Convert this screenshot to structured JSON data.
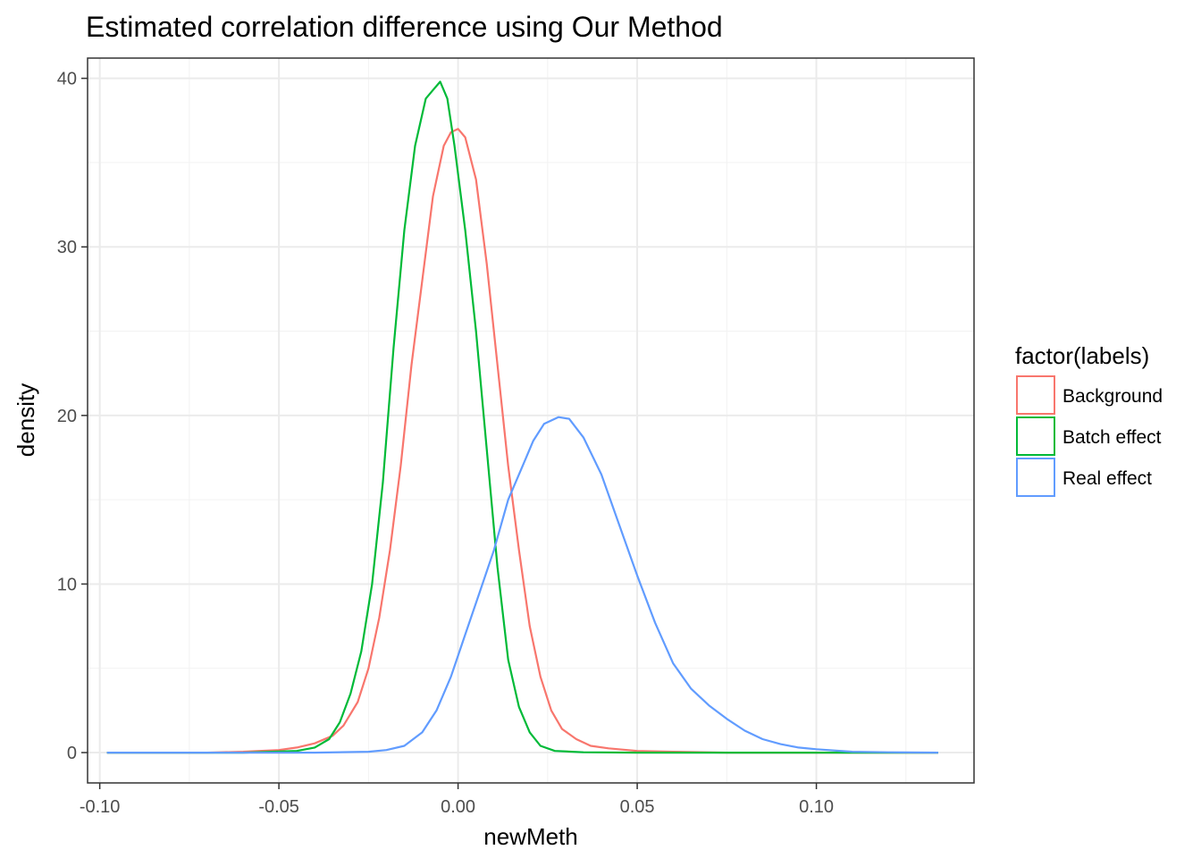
{
  "chart_data": {
    "type": "line",
    "title": "Estimated correlation difference using Our Method",
    "xlabel": "newMeth",
    "ylabel": "density",
    "xlim": [
      -0.1034,
      0.144
    ],
    "ylim": [
      -1.8,
      41.2
    ],
    "x_ticks": [
      -0.1,
      -0.05,
      0.0,
      0.05,
      0.1
    ],
    "x_tick_labels": [
      "-0.10",
      "-0.05",
      "0.00",
      "0.05",
      "0.10"
    ],
    "y_ticks": [
      0,
      10,
      20,
      30,
      40
    ],
    "y_tick_labels": [
      "0",
      "10",
      "20",
      "30",
      "40"
    ],
    "grid": true,
    "legend": {
      "title": "factor(labels)",
      "position": "right"
    },
    "series": [
      {
        "name": "Background",
        "color": "#f8766d",
        "points": [
          [
            -0.098,
            0
          ],
          [
            -0.07,
            0
          ],
          [
            -0.06,
            0.05
          ],
          [
            -0.05,
            0.15
          ],
          [
            -0.045,
            0.3
          ],
          [
            -0.04,
            0.55
          ],
          [
            -0.035,
            1
          ],
          [
            -0.032,
            1.6
          ],
          [
            -0.028,
            3
          ],
          [
            -0.025,
            5
          ],
          [
            -0.022,
            8
          ],
          [
            -0.019,
            12
          ],
          [
            -0.016,
            17
          ],
          [
            -0.013,
            23
          ],
          [
            -0.01,
            28
          ],
          [
            -0.007,
            33
          ],
          [
            -0.004,
            36
          ],
          [
            -0.002,
            36.8
          ],
          [
            0,
            37
          ],
          [
            0.002,
            36.5
          ],
          [
            0.005,
            34
          ],
          [
            0.008,
            29
          ],
          [
            0.011,
            23
          ],
          [
            0.014,
            17
          ],
          [
            0.017,
            12
          ],
          [
            0.02,
            7.5
          ],
          [
            0.023,
            4.5
          ],
          [
            0.026,
            2.5
          ],
          [
            0.029,
            1.4
          ],
          [
            0.033,
            0.8
          ],
          [
            0.037,
            0.4
          ],
          [
            0.042,
            0.25
          ],
          [
            0.05,
            0.1
          ],
          [
            0.06,
            0.05
          ],
          [
            0.075,
            0
          ],
          [
            0.134,
            0
          ]
        ]
      },
      {
        "name": "Batch effect",
        "color": "#00ba38",
        "points": [
          [
            -0.098,
            0
          ],
          [
            -0.06,
            0
          ],
          [
            -0.045,
            0.1
          ],
          [
            -0.04,
            0.3
          ],
          [
            -0.036,
            0.8
          ],
          [
            -0.033,
            1.8
          ],
          [
            -0.03,
            3.5
          ],
          [
            -0.027,
            6
          ],
          [
            -0.024,
            10
          ],
          [
            -0.021,
            16
          ],
          [
            -0.018,
            24
          ],
          [
            -0.015,
            31
          ],
          [
            -0.012,
            36
          ],
          [
            -0.009,
            38.8
          ],
          [
            -0.007,
            39.3
          ],
          [
            -0.005,
            39.8
          ],
          [
            -0.003,
            38.8
          ],
          [
            -0.001,
            36
          ],
          [
            0.002,
            31
          ],
          [
            0.005,
            25
          ],
          [
            0.008,
            18
          ],
          [
            0.011,
            11
          ],
          [
            0.014,
            5.5
          ],
          [
            0.017,
            2.7
          ],
          [
            0.02,
            1.2
          ],
          [
            0.023,
            0.4
          ],
          [
            0.027,
            0.1
          ],
          [
            0.035,
            0.02
          ],
          [
            0.05,
            0
          ],
          [
            0.134,
            0
          ]
        ]
      },
      {
        "name": "Real effect",
        "color": "#619cff",
        "points": [
          [
            -0.098,
            0
          ],
          [
            -0.04,
            0
          ],
          [
            -0.025,
            0.05
          ],
          [
            -0.02,
            0.15
          ],
          [
            -0.015,
            0.4
          ],
          [
            -0.01,
            1.2
          ],
          [
            -0.006,
            2.5
          ],
          [
            -0.002,
            4.5
          ],
          [
            0.002,
            7
          ],
          [
            0.006,
            9.5
          ],
          [
            0.01,
            12
          ],
          [
            0.014,
            15
          ],
          [
            0.018,
            17
          ],
          [
            0.021,
            18.5
          ],
          [
            0.024,
            19.5
          ],
          [
            0.028,
            19.9
          ],
          [
            0.031,
            19.8
          ],
          [
            0.035,
            18.7
          ],
          [
            0.04,
            16.5
          ],
          [
            0.045,
            13.5
          ],
          [
            0.05,
            10.5
          ],
          [
            0.055,
            7.7
          ],
          [
            0.06,
            5.3
          ],
          [
            0.065,
            3.8
          ],
          [
            0.07,
            2.8
          ],
          [
            0.075,
            2
          ],
          [
            0.08,
            1.3
          ],
          [
            0.085,
            0.8
          ],
          [
            0.09,
            0.5
          ],
          [
            0.095,
            0.3
          ],
          [
            0.1,
            0.2
          ],
          [
            0.11,
            0.05
          ],
          [
            0.12,
            0.02
          ],
          [
            0.134,
            0
          ]
        ]
      }
    ]
  }
}
